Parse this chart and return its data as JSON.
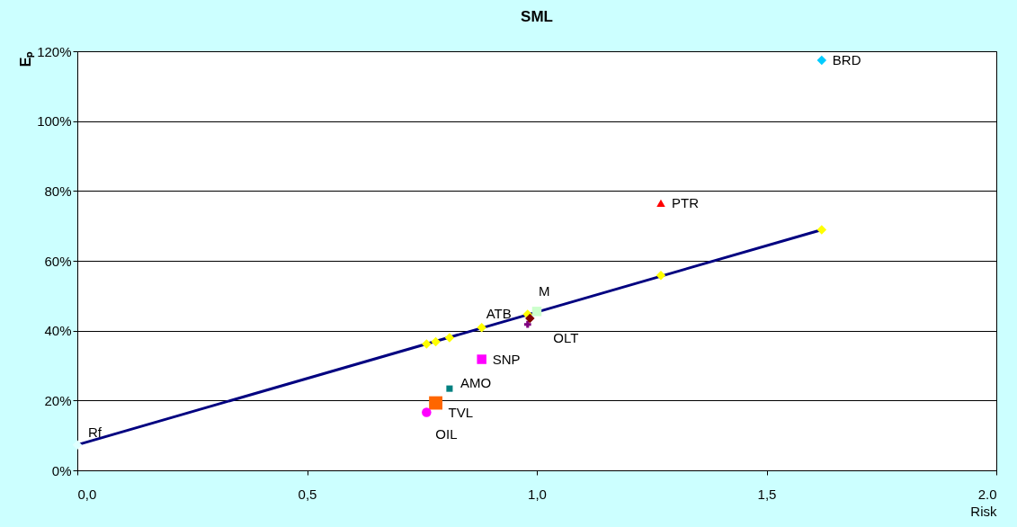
{
  "chart_data": {
    "type": "scatter",
    "title": "SML",
    "xlabel": "Risk",
    "ylabel": "Eₚ",
    "xlim": [
      0,
      2.0
    ],
    "xticks": [
      {
        "value": 0,
        "label": "0,0"
      },
      {
        "value": 0.5,
        "label": "0,5"
      },
      {
        "value": 1.0,
        "label": "1,0"
      },
      {
        "value": 1.5,
        "label": "1,5"
      },
      {
        "value": 2.0,
        "label": "2.0"
      }
    ],
    "ylim": [
      0,
      120
    ],
    "yticks": [
      {
        "value": 0,
        "label": "0%"
      },
      {
        "value": 20,
        "label": "20%"
      },
      {
        "value": 40,
        "label": "40%"
      },
      {
        "value": 60,
        "label": "60%"
      },
      {
        "value": 80,
        "label": "80%"
      },
      {
        "value": 100,
        "label": "100%"
      },
      {
        "value": 120,
        "label": "120%"
      }
    ],
    "grid": "y",
    "series": [
      {
        "type": "line",
        "color": "#000080",
        "x": [
          0,
          1.62
        ],
        "values": [
          7.3,
          68.9
        ],
        "marker": "none"
      },
      {
        "color": "#ffff00",
        "marker": "diamond",
        "x": [
          0.76,
          0.78,
          0.81,
          0.88,
          0.98,
          1.27,
          1.62
        ],
        "values": [
          36.2,
          36.8,
          38.0,
          40.9,
          44.7,
          55.8,
          68.9
        ]
      },
      {
        "name": "Rf",
        "color": "#e0ffff",
        "marker": "diamond",
        "x": [
          0
        ],
        "values": [
          7.3
        ]
      },
      {
        "name": "BRD",
        "color": "#00ccff",
        "marker": "diamond",
        "x": [
          1.62
        ],
        "values": [
          117.4
        ]
      },
      {
        "name": "PTR",
        "color": "#ff0000",
        "marker": "triangle",
        "x": [
          1.27
        ],
        "values": [
          76.5
        ]
      },
      {
        "name": "M",
        "color": "#ccffcc",
        "marker": "square",
        "x": [
          1.0
        ],
        "values": [
          45.5
        ]
      },
      {
        "name": "ATB",
        "color": "#800080",
        "marker": "cross",
        "x": [
          0.98
        ],
        "values": [
          41.8
        ]
      },
      {
        "name": "OLT",
        "color": "#800000",
        "marker": "diamond",
        "x": [
          0.985
        ],
        "values": [
          43.5
        ]
      },
      {
        "name": "SNP",
        "color": "#ff00ff",
        "marker": "square",
        "x": [
          0.88
        ],
        "values": [
          31.8
        ]
      },
      {
        "name": "AMO",
        "color": "#008080",
        "marker": "square",
        "x": [
          0.81
        ],
        "values": [
          23.4
        ]
      },
      {
        "name": "TVL",
        "color": "#ff6600",
        "marker": "square",
        "x": [
          0.78
        ],
        "values": [
          19.3
        ]
      },
      {
        "name": "OIL",
        "color": "#ff00ff",
        "marker": "circle",
        "x": [
          0.76
        ],
        "values": [
          16.6
        ]
      }
    ]
  }
}
